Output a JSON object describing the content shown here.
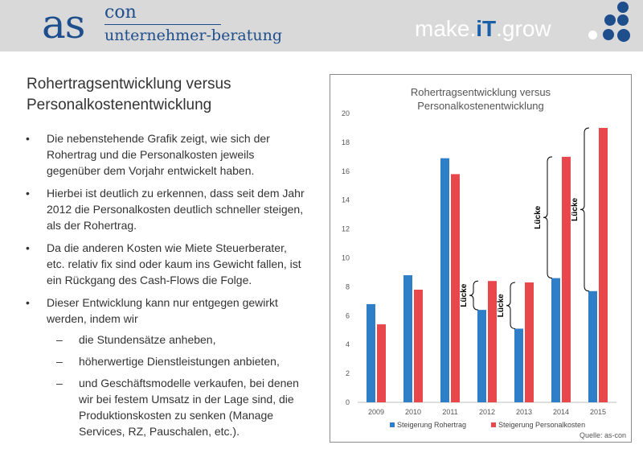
{
  "header": {
    "logo_main": "as",
    "logo_sup": "con",
    "logo_sub": "unternehmer-beratung",
    "slogan_pre": "make.",
    "slogan_mid": "iT",
    "slogan_post": ".grow",
    "brand_color": "#1f4e8c"
  },
  "slide": {
    "title_line1": "Rohertragsentwicklung versus",
    "title_line2": "Personalkostenentwicklung",
    "bullets": [
      "Die nebenstehende Grafik zeigt, wie sich der Rohertrag und die Personalkosten jeweils gegenüber dem Vorjahr entwickelt haben.",
      "Hierbei ist deutlich zu erkennen, dass seit dem Jahr 2012 die Personalkosten deutlich schneller steigen, als der Rohertrag.",
      "Da die anderen Kosten wie Miete Steuerberater, etc. relativ fix sind oder kaum ins Gewicht fallen, ist ein Rückgang des Cash-Flows die Folge.",
      "Dieser Entwicklung kann nur entgegen gewirkt werden, indem wir"
    ],
    "sub_bullets": [
      "die Stundensätze anheben,",
      "höherwertige Dienstleistungen anbieten,",
      "und Geschäftsmodelle verkaufen, bei denen wir bei festem Umsatz in der Lage sind, die Produktionskosten zu senken (Manage Services, RZ, Pauschalen, etc.)."
    ]
  },
  "chart_data": {
    "type": "bar",
    "title_line1": "Rohertragsentwicklung versus",
    "title_line2": "Personalkostenentwicklung",
    "categories": [
      "2009",
      "2010",
      "2011",
      "2012",
      "2013",
      "2014",
      "2015"
    ],
    "series": [
      {
        "name": "Steigerung Rohertrag",
        "color": "#2e7fc8",
        "values": [
          6.8,
          8.8,
          16.9,
          6.4,
          5.1,
          8.6,
          7.7
        ]
      },
      {
        "name": "Steigerung Personalkosten",
        "color": "#e8474b",
        "values": [
          5.4,
          7.8,
          15.8,
          8.4,
          8.3,
          17.0,
          19.0
        ]
      }
    ],
    "ylim": [
      0,
      20
    ],
    "yticks": [
      0,
      2,
      4,
      6,
      8,
      10,
      12,
      14,
      16,
      18,
      20
    ],
    "grid": false,
    "legend": "bottom",
    "gap_label": "Lücke",
    "gap_categories": [
      "2012",
      "2013",
      "2014",
      "2015"
    ],
    "source": "Quelle: as-con"
  }
}
